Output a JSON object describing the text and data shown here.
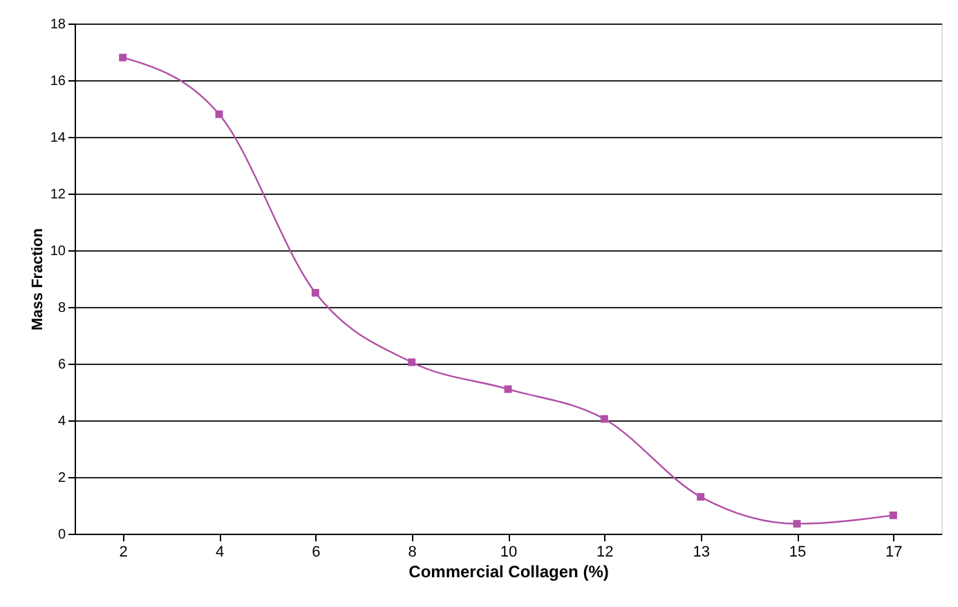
{
  "chart_data": {
    "type": "line",
    "xlabel": "Commercial Collagen (%)",
    "ylabel": "Mass Fraction",
    "categories": [
      "2",
      "4",
      "6",
      "8",
      "10",
      "12",
      "13",
      "15",
      "17"
    ],
    "series": [
      {
        "color": "#b24fa6",
        "values": [
          16.8,
          14.8,
          8.5,
          6.05,
          5.1,
          4.05,
          1.3,
          0.35,
          0.65
        ]
      }
    ],
    "ylim": [
      0,
      18
    ],
    "yticks": [
      0,
      2,
      4,
      6,
      8,
      10,
      12,
      14,
      16,
      18
    ],
    "grid": "y",
    "marker": "square",
    "line_style": "solid"
  }
}
